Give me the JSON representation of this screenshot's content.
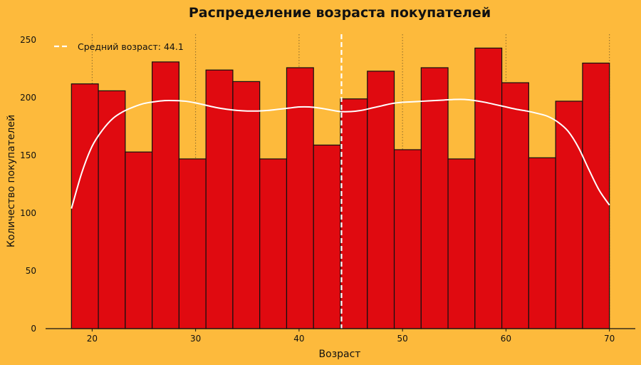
{
  "chart_data": {
    "type": "bar",
    "title": "Распределение возраста покупателей",
    "xlabel": "Возраст",
    "ylabel": "Количество покупателей",
    "xlim": [
      15.5,
      72.5
    ],
    "ylim": [
      0,
      255
    ],
    "xticks": [
      20,
      30,
      40,
      50,
      60,
      70
    ],
    "yticks": [
      0,
      50,
      100,
      150,
      200,
      250
    ],
    "bins": [
      {
        "start": 18.0,
        "end": 20.6,
        "count": 212
      },
      {
        "start": 20.6,
        "end": 23.2,
        "count": 206
      },
      {
        "start": 23.2,
        "end": 25.8,
        "count": 153
      },
      {
        "start": 25.8,
        "end": 28.4,
        "count": 231
      },
      {
        "start": 28.4,
        "end": 31.0,
        "count": 147
      },
      {
        "start": 31.0,
        "end": 33.6,
        "count": 224
      },
      {
        "start": 33.6,
        "end": 36.2,
        "count": 214
      },
      {
        "start": 36.2,
        "end": 38.8,
        "count": 147
      },
      {
        "start": 38.8,
        "end": 41.4,
        "count": 226
      },
      {
        "start": 41.4,
        "end": 44.0,
        "count": 159
      },
      {
        "start": 44.0,
        "end": 46.6,
        "count": 199
      },
      {
        "start": 46.6,
        "end": 49.2,
        "count": 223
      },
      {
        "start": 49.2,
        "end": 51.8,
        "count": 155
      },
      {
        "start": 51.8,
        "end": 54.4,
        "count": 226
      },
      {
        "start": 54.4,
        "end": 57.0,
        "count": 147
      },
      {
        "start": 57.0,
        "end": 59.6,
        "count": 243
      },
      {
        "start": 59.6,
        "end": 62.2,
        "count": 213
      },
      {
        "start": 62.2,
        "end": 64.8,
        "count": 148
      },
      {
        "start": 64.8,
        "end": 67.4,
        "count": 197
      },
      {
        "start": 67.4,
        "end": 70.0,
        "count": 230
      }
    ],
    "kde": {
      "x": [
        18,
        19,
        20,
        21,
        22,
        23,
        24,
        25,
        26,
        27,
        28,
        29,
        30,
        31,
        32,
        33,
        34,
        35,
        36,
        37,
        38,
        39,
        40,
        41,
        42,
        43,
        44,
        45,
        46,
        47,
        48,
        49,
        50,
        51,
        52,
        53,
        54,
        55,
        56,
        57,
        58,
        59,
        60,
        61,
        62,
        63,
        64,
        65,
        66,
        67,
        68,
        69,
        70
      ],
      "y": [
        104,
        135,
        158,
        172,
        182,
        188,
        192,
        195,
        196.5,
        197.5,
        197.5,
        197,
        195.5,
        193.5,
        191.5,
        190,
        189,
        188.5,
        188.5,
        189,
        190,
        191,
        192,
        192,
        191,
        189.5,
        188,
        188,
        189,
        191,
        193,
        195,
        196,
        196.5,
        197,
        197.5,
        198,
        198.5,
        198.5,
        197.5,
        196,
        194,
        192,
        190,
        188.5,
        186.5,
        184,
        179,
        171,
        157,
        138,
        120,
        107
      ]
    },
    "mean": {
      "value": 44.1,
      "label": "Средний возраст: 44.1"
    },
    "grid": "vertical dotted at x ticks",
    "legend_position": "top-left",
    "colors": {
      "background": "#FDBA3C",
      "bar_fill": "#E00A10",
      "bar_edge": "#111111",
      "kde_line": "#FFFFFF",
      "mean_line": "#FFFFFF",
      "grid": "#8A6A2A",
      "axis": "#111111"
    }
  }
}
